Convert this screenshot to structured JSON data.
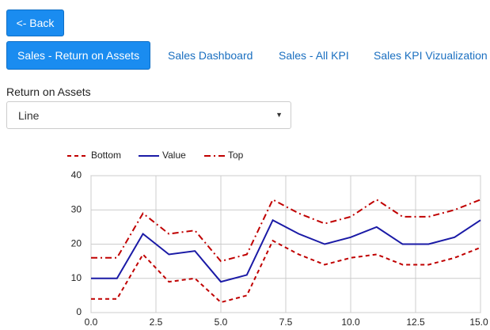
{
  "back_button": "<- Back",
  "tabs": [
    "Sales - Return on Assets",
    "Sales Dashboard",
    "Sales - All KPI",
    "Sales KPI Vizualization"
  ],
  "active_tab": 0,
  "form": {
    "label": "Return on Assets",
    "select_value": "Line"
  },
  "chart_data": {
    "type": "line",
    "x": [
      0,
      1,
      2,
      3,
      4,
      5,
      6,
      7,
      8,
      9,
      10,
      11,
      12,
      13,
      14,
      15
    ],
    "series": [
      {
        "name": "Bottom",
        "color": "#c00000",
        "line_style": "dashed",
        "values": [
          4,
          4,
          17,
          9,
          10,
          3,
          5,
          21,
          17,
          14,
          16,
          17,
          14,
          14,
          16,
          19
        ]
      },
      {
        "name": "Value",
        "color": "#1a1aa6",
        "line_style": "solid",
        "values": [
          10,
          10,
          23,
          17,
          18,
          9,
          11,
          27,
          23,
          20,
          22,
          25,
          20,
          20,
          22,
          27
        ]
      },
      {
        "name": "Top",
        "color": "#c00000",
        "line_style": "dashdot",
        "values": [
          16,
          16,
          29,
          23,
          24,
          15,
          17,
          33,
          29,
          26,
          28,
          33,
          28,
          28,
          30,
          33
        ]
      }
    ],
    "xlim": [
      0,
      15
    ],
    "xticks": [
      {
        "value": 0,
        "label": "0.0"
      },
      {
        "value": 2.5,
        "label": "2.5"
      },
      {
        "value": 5,
        "label": "5.0"
      },
      {
        "value": 7.5,
        "label": "7.5"
      },
      {
        "value": 10,
        "label": "10.0"
      },
      {
        "value": 12.5,
        "label": "12.5"
      },
      {
        "value": 15,
        "label": "15.0"
      }
    ],
    "ylim": [
      0,
      40
    ],
    "yticks": [
      0,
      10,
      20,
      30,
      40
    ],
    "grid": true,
    "legend": "top"
  }
}
